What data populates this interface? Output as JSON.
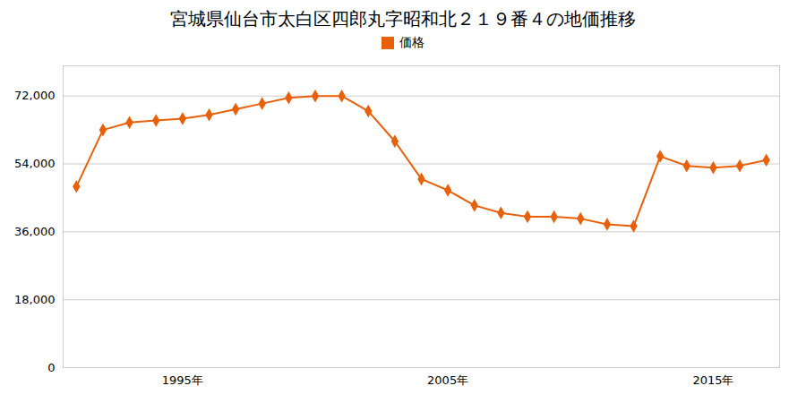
{
  "chart_data": {
    "type": "line",
    "title": "宮城県仙台市太白区四郎丸字昭和北２１９番４の地価推移",
    "x": [
      1991,
      1992,
      1993,
      1994,
      1995,
      1996,
      1997,
      1998,
      1999,
      2000,
      2001,
      2002,
      2003,
      2004,
      2005,
      2006,
      2007,
      2008,
      2009,
      2010,
      2011,
      2012,
      2013,
      2014,
      2015,
      2016,
      2017
    ],
    "series": [
      {
        "name": "価格",
        "color": "#E8600A",
        "marker": "diamond",
        "values": [
          48000,
          63000,
          65000,
          65500,
          66000,
          67000,
          68500,
          70000,
          71500,
          72000,
          72000,
          68000,
          60000,
          50000,
          47000,
          43000,
          41000,
          40000,
          40000,
          39500,
          38000,
          37500,
          56000,
          53500,
          53000,
          53500,
          55000
        ]
      }
    ],
    "xlim": [
      1990.5,
      2017.5
    ],
    "xticks": [
      {
        "value": 1995,
        "label": "1995年"
      },
      {
        "value": 2005,
        "label": "2005年"
      },
      {
        "value": 2015,
        "label": "2015年"
      }
    ],
    "ylim": [
      0,
      80000
    ],
    "yticks": [
      0,
      {
        "value": 18000,
        "label": "18,000"
      },
      {
        "value": 36000,
        "label": "36,000"
      },
      {
        "value": 54000,
        "label": "54,000"
      },
      {
        "value": 72000,
        "label": "72,000"
      }
    ],
    "grid": true,
    "legend": "top"
  }
}
